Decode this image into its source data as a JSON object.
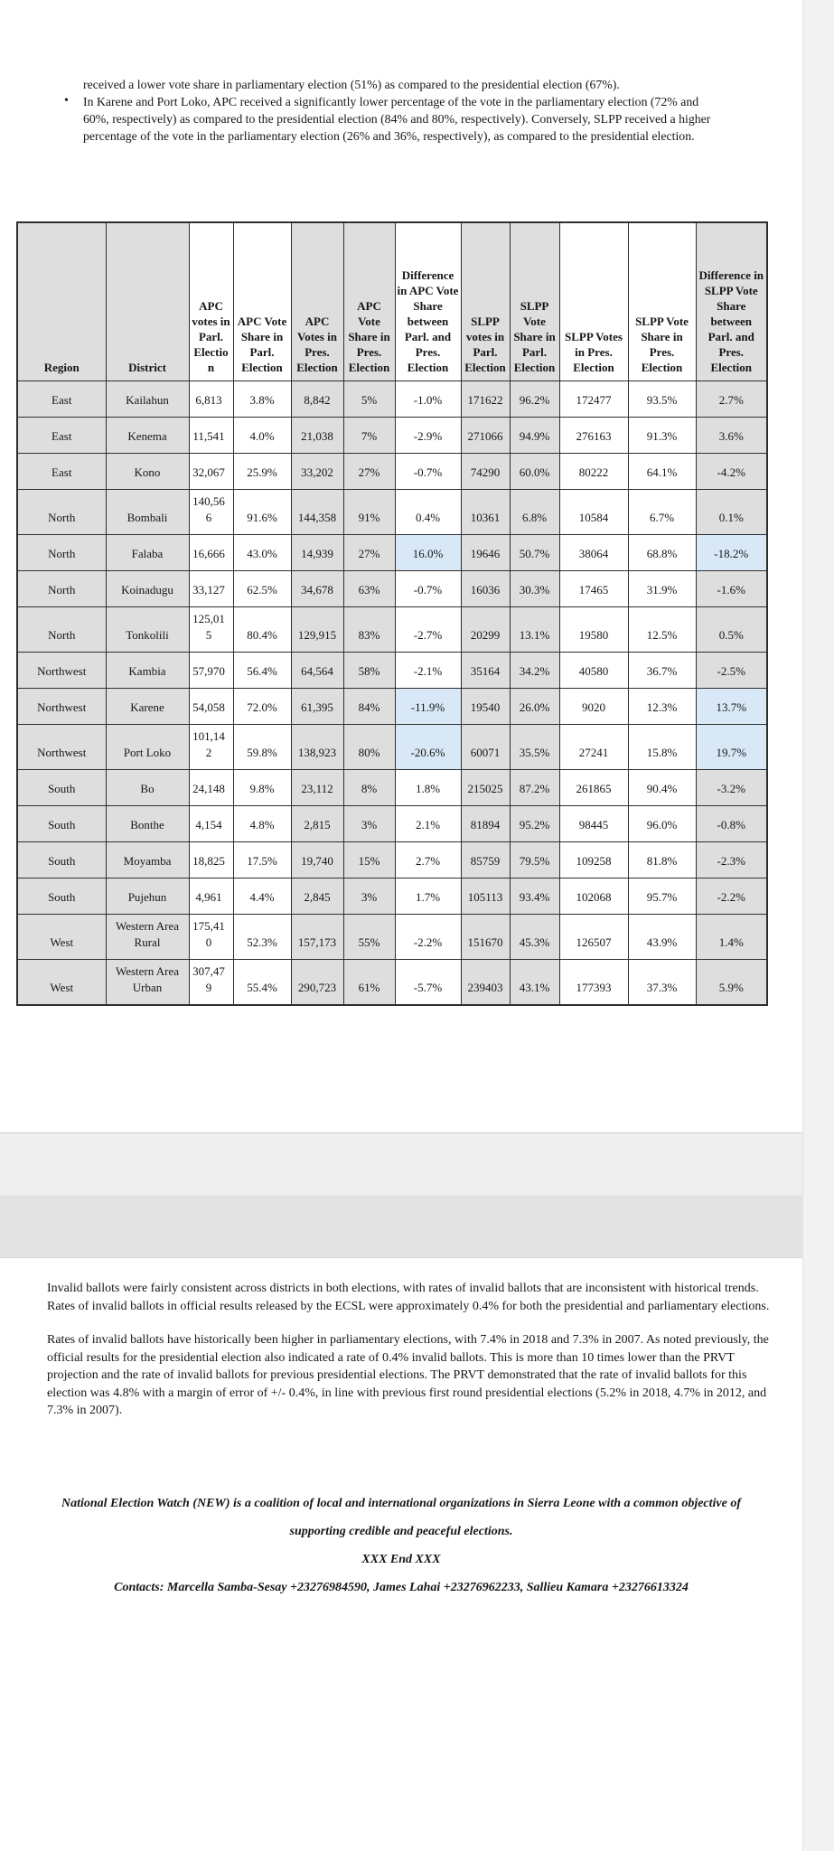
{
  "intro": {
    "continuation": "received a lower vote share in parliamentary election (51%) as compared to the presidential election (67%).",
    "bullet_marker": "•",
    "bullet": "In Karene and Port Loko, APC received a significantly lower percentage of the vote in the parliamentary election (72% and 60%, respectively) as compared to the presidential election (84% and 80%, respectively). Conversely, SLPP received a higher percentage of the vote in the parliamentary election (26% and 36%, respectively), as compared to the presidential election."
  },
  "table": {
    "columns": [
      "Region",
      "District",
      "APC votes in Parl. Election",
      "APC Vote Share in Parl. Election",
      "APC Votes in Pres. Election",
      "APC Vote Share in Pres. Election",
      "Difference in APC Vote Share between Parl. and Pres. Election",
      "SLPP votes in Parl. Election",
      "SLPP Vote Share in Parl. Election",
      "SLPP Votes in Pres. Election",
      "SLPP Vote Share in Pres. Election",
      "Difference in SLPP Vote Share between Parl. and Pres. Election"
    ],
    "shaded_column_indexes": [
      0,
      1,
      4,
      5,
      7,
      8,
      11
    ],
    "shade_color": "#dedede",
    "highlight_color": "#d9e8f6",
    "border_color": "#2e2e2e",
    "rows": [
      {
        "cells": [
          "East",
          "Kailahun",
          "6,813",
          "3.8%",
          "8,842",
          "5%",
          "-1.0%",
          "171622",
          "96.2%",
          "172477",
          "93.5%",
          "2.7%"
        ],
        "highlight": []
      },
      {
        "cells": [
          "East",
          "Kenema",
          "11,541",
          "4.0%",
          "21,038",
          "7%",
          "-2.9%",
          "271066",
          "94.9%",
          "276163",
          "91.3%",
          "3.6%"
        ],
        "highlight": []
      },
      {
        "cells": [
          "East",
          "Kono",
          "32,067",
          "25.9%",
          "33,202",
          "27%",
          "-0.7%",
          "74290",
          "60.0%",
          "80222",
          "64.1%",
          "-4.2%"
        ],
        "highlight": []
      },
      {
        "cells": [
          "North",
          "Bombali",
          "140,566",
          "91.6%",
          "144,358",
          "91%",
          "0.4%",
          "10361",
          "6.8%",
          "10584",
          "6.7%",
          "0.1%"
        ],
        "highlight": []
      },
      {
        "cells": [
          "North",
          "Falaba",
          "16,666",
          "43.0%",
          "14,939",
          "27%",
          "16.0%",
          "19646",
          "50.7%",
          "38064",
          "68.8%",
          "-18.2%"
        ],
        "highlight": [
          6,
          11
        ]
      },
      {
        "cells": [
          "North",
          "Koinadugu",
          "33,127",
          "62.5%",
          "34,678",
          "63%",
          "-0.7%",
          "16036",
          "30.3%",
          "17465",
          "31.9%",
          "-1.6%"
        ],
        "highlight": []
      },
      {
        "cells": [
          "North",
          "Tonkolili",
          "125,015",
          "80.4%",
          "129,915",
          "83%",
          "-2.7%",
          "20299",
          "13.1%",
          "19580",
          "12.5%",
          "0.5%"
        ],
        "highlight": []
      },
      {
        "cells": [
          "Northwest",
          "Kambia",
          "57,970",
          "56.4%",
          "64,564",
          "58%",
          "-2.1%",
          "35164",
          "34.2%",
          "40580",
          "36.7%",
          "-2.5%"
        ],
        "highlight": []
      },
      {
        "cells": [
          "Northwest",
          "Karene",
          "54,058",
          "72.0%",
          "61,395",
          "84%",
          "-11.9%",
          "19540",
          "26.0%",
          "9020",
          "12.3%",
          "13.7%"
        ],
        "highlight": [
          6,
          11
        ]
      },
      {
        "cells": [
          "Northwest",
          "Port Loko",
          "101,142",
          "59.8%",
          "138,923",
          "80%",
          "-20.6%",
          "60071",
          "35.5%",
          "27241",
          "15.8%",
          "19.7%"
        ],
        "highlight": [
          6,
          11
        ]
      },
      {
        "cells": [
          "South",
          "Bo",
          "24,148",
          "9.8%",
          "23,112",
          "8%",
          "1.8%",
          "215025",
          "87.2%",
          "261865",
          "90.4%",
          "-3.2%"
        ],
        "highlight": []
      },
      {
        "cells": [
          "South",
          "Bonthe",
          "4,154",
          "4.8%",
          "2,815",
          "3%",
          "2.1%",
          "81894",
          "95.2%",
          "98445",
          "96.0%",
          "-0.8%"
        ],
        "highlight": []
      },
      {
        "cells": [
          "South",
          "Moyamba",
          "18,825",
          "17.5%",
          "19,740",
          "15%",
          "2.7%",
          "85759",
          "79.5%",
          "109258",
          "81.8%",
          "-2.3%"
        ],
        "highlight": []
      },
      {
        "cells": [
          "South",
          "Pujehun",
          "4,961",
          "4.4%",
          "2,845",
          "3%",
          "1.7%",
          "105113",
          "93.4%",
          "102068",
          "95.7%",
          "-2.2%"
        ],
        "highlight": []
      },
      {
        "cells": [
          "West",
          "Western Area Rural",
          "175,410",
          "52.3%",
          "157,173",
          "55%",
          "-2.2%",
          "151670",
          "45.3%",
          "126507",
          "43.9%",
          "1.4%"
        ],
        "highlight": []
      },
      {
        "cells": [
          "West",
          "Western Area Urban",
          "307,479",
          "55.4%",
          "290,723",
          "61%",
          "-5.7%",
          "239403",
          "43.1%",
          "177393",
          "37.3%",
          "5.9%"
        ],
        "highlight": []
      }
    ]
  },
  "body": {
    "para1": "Invalid ballots were fairly consistent across districts in both elections, with rates of invalid ballots that are inconsistent with historical trends. Rates of invalid ballots in official results released by the ECSL were approximately 0.4% for both the presidential and parliamentary elections.",
    "para2": "Rates of invalid ballots have historically been higher in parliamentary elections, with 7.4% in 2018 and 7.3% in 2007. As noted previously, the official results for the presidential election also indicated a rate of 0.4% invalid ballots. This is more than 10 times lower than the PRVT projection and the rate of invalid ballots for previous presidential elections. The PRVT demonstrated that the rate of invalid ballots for this election was 4.8% with a margin of error of +/- 0.4%, in line with previous first round presidential elections (5.2% in 2018, 4.7% in 2012, and 7.3% in 2007)."
  },
  "footer": {
    "coalition": "National Election Watch (NEW) is a coalition of local and international organizations in Sierra Leone with a common objective of supporting credible and peaceful elections.",
    "end_marker": "XXX End XXX",
    "contacts": "Contacts: Marcella Samba-Sesay +23276984590, James Lahai +23276962233, Sallieu Kamara +23276613324"
  }
}
